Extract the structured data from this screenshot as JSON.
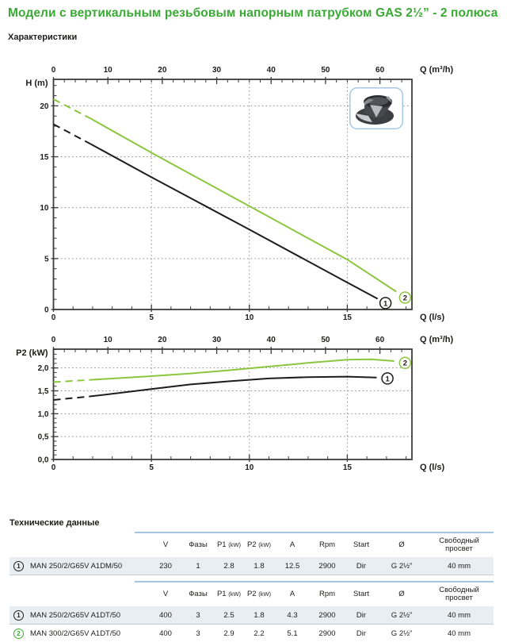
{
  "page": {
    "title": "Модели с вертикальным резьбовым напорным патрубком GAS 2½” - 2 полюса",
    "subtitle": "Характеристики",
    "tech_heading": "Технические данные"
  },
  "colors": {
    "title_green": "#3aaa35",
    "curve_green": "#8cc63f",
    "curve_black": "#1d1d1b",
    "axis": "#3c3c3b",
    "grid": "#8f8f8f",
    "table_rule_blue": "#a6c6e0",
    "row_bg": "#e9eef3",
    "row_sep": "#c2cbd2",
    "impeller_box_border": "#a5c9e3"
  },
  "chart_data": [
    {
      "type": "line",
      "id": "head-flow-curve",
      "ylabel": "H (m)",
      "xlabel_top": "Q (m³/h)",
      "xlabel_bottom": "Q (l/s)",
      "xlim_ls": [
        0,
        18.3
      ],
      "ylim": [
        0,
        22.6
      ],
      "x_ticks_top": {
        "major_step": 10,
        "minor_step": 2,
        "labels": [
          0,
          10,
          20,
          30,
          40,
          50,
          60
        ]
      },
      "x_ticks_bottom": {
        "major_step": 5,
        "minor_step": 1,
        "labels": [
          0,
          5,
          10,
          15
        ]
      },
      "y_ticks": {
        "major": [
          0,
          5,
          10,
          15,
          20
        ],
        "labels": [
          "0",
          "5",
          "10",
          "15",
          "20"
        ],
        "minor_step": 1
      },
      "grid_x_ls": [
        5,
        10,
        15
      ],
      "grid_y": [
        5,
        10,
        15,
        20
      ],
      "series": [
        {
          "name": "1",
          "color_key": "black",
          "dash_points": [
            [
              0,
              18.2
            ],
            [
              1.9,
              16.25
            ]
          ],
          "solid_points": [
            [
              1.9,
              16.25
            ],
            [
              5,
              13.0
            ],
            [
              10,
              7.85
            ],
            [
              15,
              2.65
            ],
            [
              16.55,
              1.05
            ]
          ],
          "marker": {
            "x": 16.95,
            "y": 0.63,
            "label": "1"
          }
        },
        {
          "name": "2",
          "color_key": "green",
          "dash_points": [
            [
              0,
              20.65
            ],
            [
              1.9,
              18.75
            ]
          ],
          "solid_points": [
            [
              1.9,
              18.75
            ],
            [
              5,
              15.4
            ],
            [
              10,
              10.15
            ],
            [
              15,
              4.9
            ],
            [
              17.5,
              1.75
            ]
          ],
          "marker": {
            "x": 17.95,
            "y": 1.17,
            "label": "2"
          }
        }
      ]
    },
    {
      "type": "line",
      "id": "power-flow-curve",
      "ylabel": "P2 (kW)",
      "xlabel_top": "Q (m³/h)",
      "xlabel_bottom": "Q (l/s)",
      "xlim_ls": [
        0,
        18.3
      ],
      "ylim": [
        0,
        2.41
      ],
      "x_ticks_top": {
        "major_step": 10,
        "minor_step": 2,
        "labels": [
          0,
          10,
          20,
          30,
          40,
          50,
          60
        ]
      },
      "x_ticks_bottom": {
        "major_step": 5,
        "minor_step": 1,
        "labels": [
          0,
          5,
          10,
          15
        ]
      },
      "y_ticks": {
        "major": [
          0,
          0.5,
          1.0,
          1.5,
          2.0
        ],
        "labels": [
          "0,0",
          "0,5",
          "1,0",
          "1,5",
          "2,0"
        ],
        "minor_step": 0.1
      },
      "grid_x_ls": [
        5,
        10,
        15
      ],
      "grid_y": [
        0.5,
        1.0,
        1.5,
        2.0
      ],
      "series": [
        {
          "name": "1",
          "color_key": "black",
          "dash_points": [
            [
              0,
              1.3
            ],
            [
              1.9,
              1.38
            ]
          ],
          "solid_points": [
            [
              1.9,
              1.38
            ],
            [
              3.5,
              1.46
            ],
            [
              5,
              1.54
            ],
            [
              7,
              1.64
            ],
            [
              9,
              1.71
            ],
            [
              11,
              1.77
            ],
            [
              13,
              1.8
            ],
            [
              15,
              1.81
            ],
            [
              16.5,
              1.79
            ]
          ],
          "marker": {
            "x": 17.05,
            "y": 1.77,
            "label": "1"
          }
        },
        {
          "name": "2",
          "color_key": "green",
          "dash_points": [
            [
              0,
              1.69
            ],
            [
              1.9,
              1.74
            ]
          ],
          "solid_points": [
            [
              1.9,
              1.74
            ],
            [
              3.5,
              1.78
            ],
            [
              5,
              1.82
            ],
            [
              7,
              1.88
            ],
            [
              9,
              1.95
            ],
            [
              11,
              2.03
            ],
            [
              13,
              2.11
            ],
            [
              15,
              2.18
            ],
            [
              16.2,
              2.19
            ],
            [
              17.4,
              2.15
            ]
          ],
          "marker": {
            "x": 17.95,
            "y": 2.11,
            "label": "2"
          }
        }
      ]
    }
  ],
  "table_headers": [
    {
      "label": "V"
    },
    {
      "label": "Фазы"
    },
    {
      "label": "P1",
      "sub": "(kW)"
    },
    {
      "label": "P2",
      "sub": "(kW)"
    },
    {
      "label": "A"
    },
    {
      "label": "Rpm"
    },
    {
      "label": "Start"
    },
    {
      "label": "Ø"
    },
    {
      "label": "Свободный просвет"
    }
  ],
  "tables": [
    {
      "rows": [
        {
          "num": "1",
          "green": false,
          "shaded": true,
          "model": "MAN 250/2/G65V A1DM/50",
          "values": [
            "230",
            "1",
            "2.8",
            "1.8",
            "12.5",
            "2900",
            "Dir",
            "G 2½”",
            "40 mm"
          ]
        }
      ]
    },
    {
      "rows": [
        {
          "num": "1",
          "green": false,
          "shaded": true,
          "model": "MAN 250/2/G65V A1DT/50",
          "values": [
            "400",
            "3",
            "2.5",
            "1.8",
            "4.3",
            "2900",
            "Dir",
            "G 2½”",
            "40 mm"
          ]
        },
        {
          "num": "2",
          "green": true,
          "shaded": false,
          "model": "MAN 300/2/G65V A1DT/50",
          "values": [
            "400",
            "3",
            "2.9",
            "2.2",
            "5.1",
            "2900",
            "Dir",
            "G 2½”",
            "40 mm"
          ]
        }
      ]
    }
  ]
}
